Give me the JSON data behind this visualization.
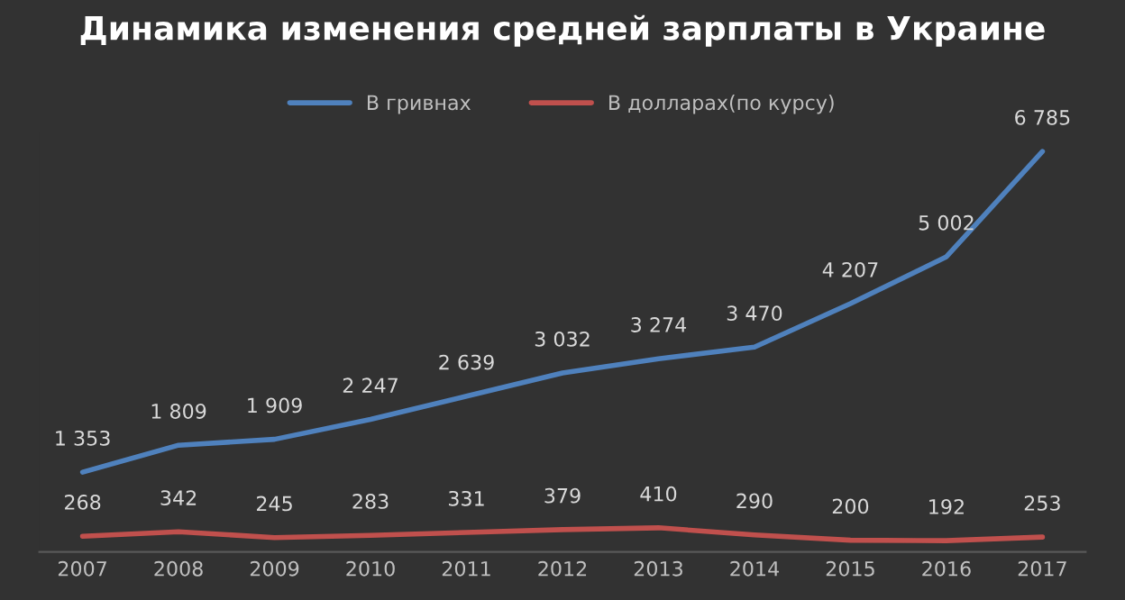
{
  "chart_data": {
    "type": "line",
    "title": "Динамика изменения средней зарплаты в Украине",
    "categories": [
      "2007",
      "2008",
      "2009",
      "2010",
      "2011",
      "2012",
      "2013",
      "2014",
      "2015",
      "2016",
      "2017"
    ],
    "series": [
      {
        "name": "В гривнах",
        "color": "#4f81bd",
        "values": [
          1353,
          1809,
          1909,
          2247,
          2639,
          3032,
          3274,
          3470,
          4207,
          5002,
          6785
        ],
        "value_labels": [
          "1 353",
          "1 809",
          "1 909",
          "2 247",
          "2 639",
          "3 032",
          "3 274",
          "3 470",
          "4 207",
          "5 002",
          "6 785"
        ]
      },
      {
        "name": "В долларах(по курсу)",
        "color": "#c0504d",
        "values": [
          268,
          342,
          245,
          283,
          331,
          379,
          410,
          290,
          200,
          192,
          253
        ],
        "value_labels": [
          "268",
          "342",
          "245",
          "283",
          "331",
          "379",
          "410",
          "290",
          "200",
          "192",
          "253"
        ]
      }
    ],
    "grid": false,
    "legend": "top",
    "marker": "none",
    "line_style": "solid"
  }
}
